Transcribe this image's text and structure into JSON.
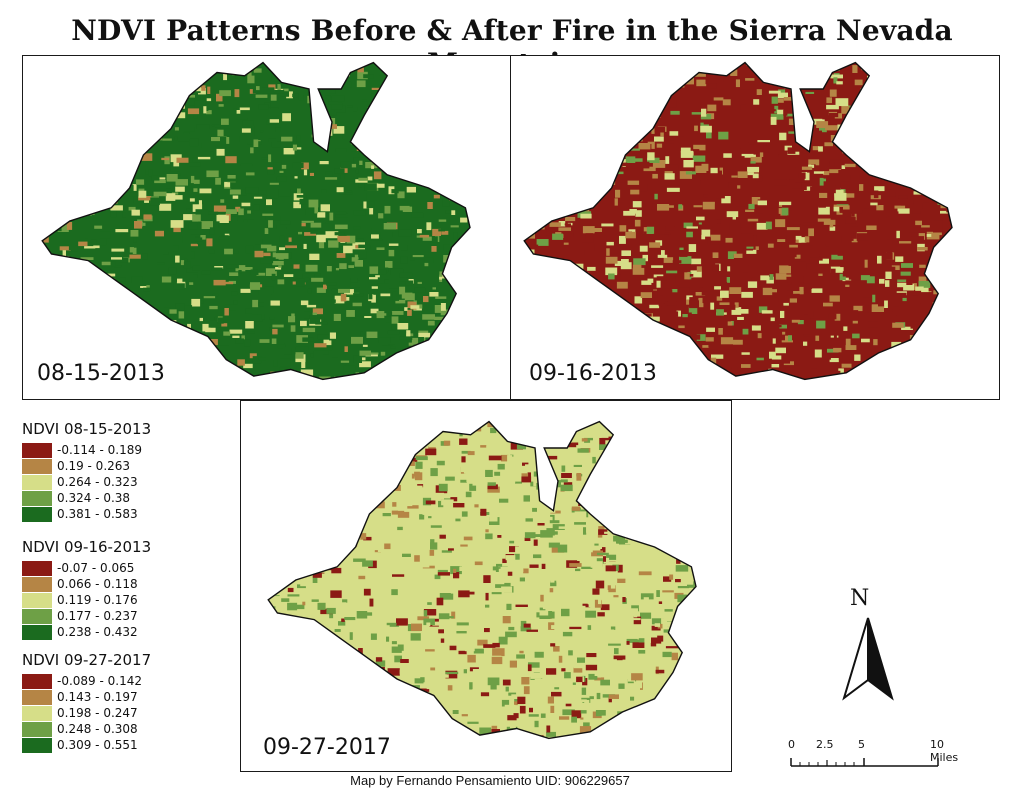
{
  "title": "NDVI Patterns Before & After Fire in the Sierra Nevada Mountains",
  "panels": [
    {
      "id": "a",
      "date": "08-15-2013",
      "state": "pre-fire",
      "dominant": [
        "#1b6b1f",
        "#6ea046",
        "#d6de88",
        "#b58545"
      ]
    },
    {
      "id": "b",
      "date": "09-16-2013",
      "state": "post-fire",
      "dominant": [
        "#8b1a14",
        "#b58545",
        "#d6de88",
        "#6ea046"
      ]
    },
    {
      "id": "c",
      "date": "09-27-2017",
      "state": "recovery",
      "dominant": [
        "#d6de88",
        "#6ea046",
        "#8b1a14",
        "#b58545"
      ]
    }
  ],
  "legends": [
    {
      "title": "NDVI 08-15-2013",
      "classes": [
        {
          "label": "-0.114 - 0.189",
          "color": "#8b1a14"
        },
        {
          "label": "0.19 - 0.263",
          "color": "#b58545"
        },
        {
          "label": "0.264 - 0.323",
          "color": "#d6de88"
        },
        {
          "label": "0.324 - 0.38",
          "color": "#6ea046"
        },
        {
          "label": "0.381 - 0.583",
          "color": "#1b6b1f"
        }
      ]
    },
    {
      "title": "NDVI 09-16-2013",
      "classes": [
        {
          "label": "-0.07 - 0.065",
          "color": "#8b1a14"
        },
        {
          "label": "0.066 - 0.118",
          "color": "#b58545"
        },
        {
          "label": "0.119 - 0.176",
          "color": "#d6de88"
        },
        {
          "label": "0.177 - 0.237",
          "color": "#6ea046"
        },
        {
          "label": "0.238 - 0.432",
          "color": "#1b6b1f"
        }
      ]
    },
    {
      "title": "NDVI 09-27-2017",
      "classes": [
        {
          "label": "-0.089 - 0.142",
          "color": "#8b1a14"
        },
        {
          "label": "0.143 - 0.197",
          "color": "#b58545"
        },
        {
          "label": "0.198 - 0.247",
          "color": "#d6de88"
        },
        {
          "label": "0.248 - 0.308",
          "color": "#6ea046"
        },
        {
          "label": "0.309 - 0.551",
          "color": "#1b6b1f"
        }
      ]
    }
  ],
  "north_arrow": {
    "label": "N",
    "icon": "north-arrow-icon"
  },
  "scale_bar": {
    "ticks": [
      "0",
      "2.5",
      "5",
      "10 Miles"
    ]
  },
  "credit": "Map by Fernando Pensamiento UID: 906229657"
}
